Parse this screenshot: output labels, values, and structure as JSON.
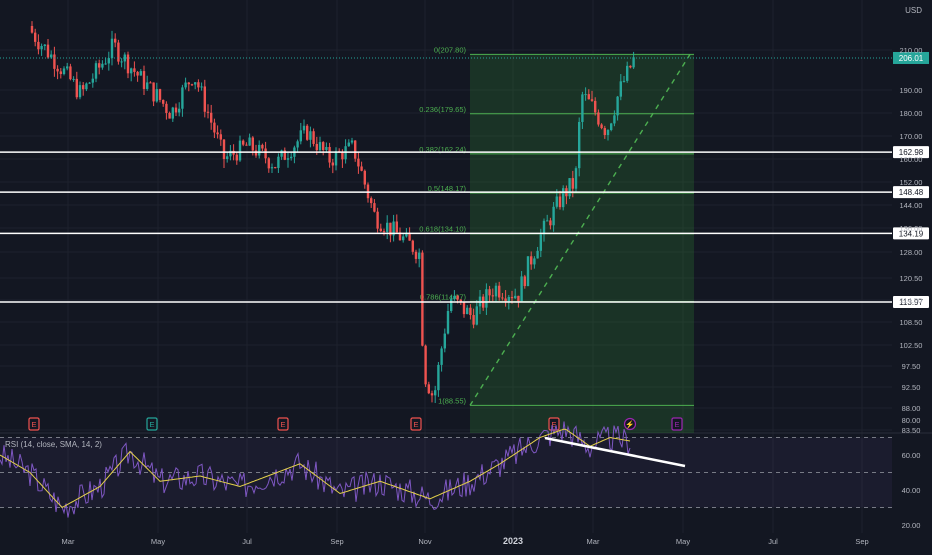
{
  "currency_label": "USD",
  "rsi_label": "RSI (14, close, SMA, 14, 2)",
  "colors": {
    "background": "#131722",
    "grid": "#1e222d",
    "up": "#26a69a",
    "down": "#ef5350",
    "fib_fill": "#2e7d32",
    "fib_line": "#4caf50",
    "rsi_line": "#7e57c2",
    "rsi_ma": "#e4d14b",
    "price_badge": "#26a69a"
  },
  "chart_data": {
    "type": "candlestick",
    "price_axis_ticks": [
      "210.00",
      "190.00",
      "180.00",
      "170.00",
      "160.00",
      "152.00",
      "144.00",
      "136.00",
      "128.00",
      "120.50",
      "114.50",
      "108.50",
      "102.50",
      "97.50",
      "92.50",
      "88.00",
      "83.50"
    ],
    "x_axis_ticks": [
      "Mar",
      "May",
      "Jul",
      "Sep",
      "Nov",
      "2023",
      "Mar",
      "May",
      "Jul",
      "Sep"
    ],
    "last_price": "206.01",
    "horizontal_levels": [
      "162.98",
      "148.48",
      "134.19",
      "113.97"
    ],
    "fib_retracement": [
      {
        "label": "0(207.80)",
        "price": 207.8
      },
      {
        "label": "0.236(179.65)",
        "price": 179.65
      },
      {
        "label": "0.382(162.24)",
        "price": 162.24
      },
      {
        "label": "0.5(148.17)",
        "price": 148.17
      },
      {
        "label": "0.618(134.10)",
        "price": 134.1
      },
      {
        "label": "0.786(114.07)",
        "price": 114.07
      },
      {
        "label": "1(88.55)",
        "price": 88.55
      }
    ],
    "earnings_markers": [
      {
        "label": "E",
        "kind": "down",
        "month": "Feb 2022"
      },
      {
        "label": "E",
        "kind": "up",
        "month": "Apr 2022"
      },
      {
        "label": "E",
        "kind": "down",
        "month": "Jul 2022"
      },
      {
        "label": "E",
        "kind": "down",
        "month": "Oct 2022"
      },
      {
        "label": "E",
        "kind": "down",
        "month": "Jan 2023"
      },
      {
        "label": "⚡",
        "kind": "event",
        "month": "Mar 2023"
      },
      {
        "label": "E",
        "kind": "future",
        "month": "Apr 2023"
      }
    ],
    "rsi_axis_ticks": [
      "80.00",
      "60.00",
      "40.00",
      "20.00"
    ],
    "rsi_levels": [
      70,
      50,
      30
    ],
    "price_path": [
      {
        "date": "2022-02-01",
        "close": 222
      },
      {
        "date": "2022-02-20",
        "close": 205
      },
      {
        "date": "2022-03-10",
        "close": 188
      },
      {
        "date": "2022-04-01",
        "close": 212
      },
      {
        "date": "2022-04-20",
        "close": 195
      },
      {
        "date": "2022-05-10",
        "close": 180
      },
      {
        "date": "2022-05-25",
        "close": 198
      },
      {
        "date": "2022-06-15",
        "close": 160
      },
      {
        "date": "2022-07-01",
        "close": 166
      },
      {
        "date": "2022-07-20",
        "close": 158
      },
      {
        "date": "2022-08-10",
        "close": 172
      },
      {
        "date": "2022-08-25",
        "close": 160
      },
      {
        "date": "2022-09-10",
        "close": 165
      },
      {
        "date": "2022-09-25",
        "close": 140
      },
      {
        "date": "2022-10-10",
        "close": 134
      },
      {
        "date": "2022-10-25",
        "close": 128
      },
      {
        "date": "2022-10-28",
        "close": 96
      },
      {
        "date": "2022-11-04",
        "close": 90
      },
      {
        "date": "2022-11-15",
        "close": 115
      },
      {
        "date": "2022-11-30",
        "close": 110
      },
      {
        "date": "2022-12-15",
        "close": 118
      },
      {
        "date": "2022-12-31",
        "close": 116
      },
      {
        "date": "2023-01-15",
        "close": 133
      },
      {
        "date": "2023-01-31",
        "close": 148
      },
      {
        "date": "2023-02-08",
        "close": 152
      },
      {
        "date": "2023-02-12",
        "close": 188
      },
      {
        "date": "2023-02-20",
        "close": 182
      },
      {
        "date": "2023-03-01",
        "close": 172
      },
      {
        "date": "2023-03-10",
        "close": 190
      },
      {
        "date": "2023-03-20",
        "close": 206
      }
    ]
  }
}
